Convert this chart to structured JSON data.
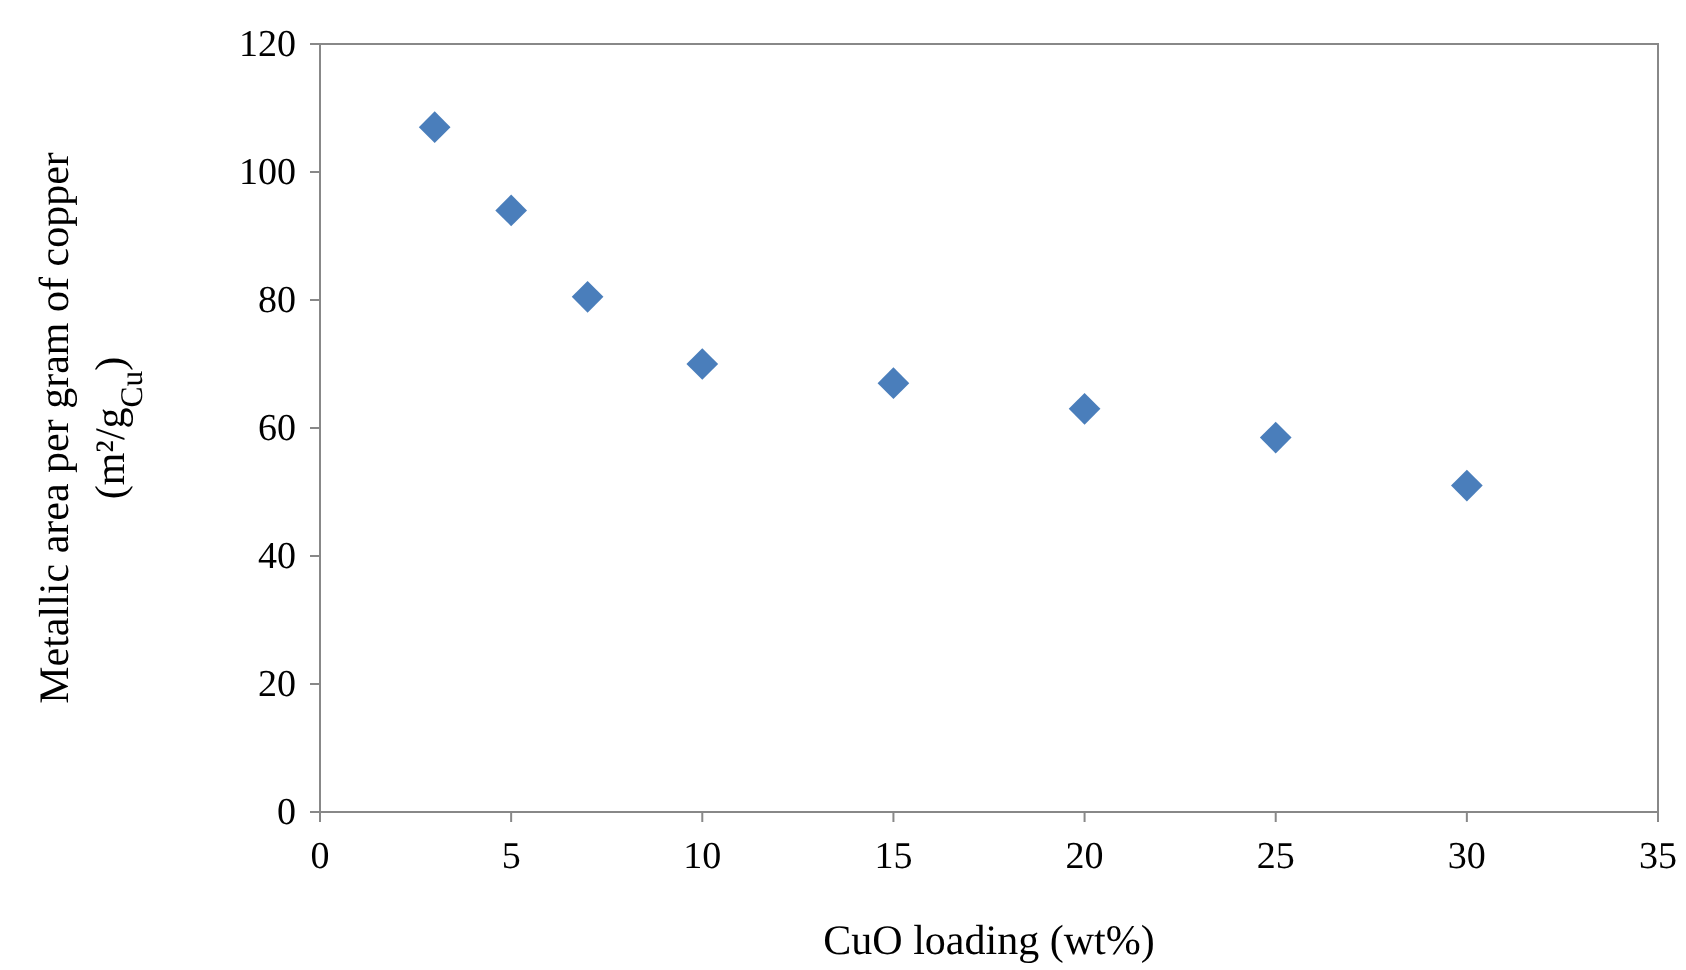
{
  "chart_data": {
    "type": "scatter",
    "xlabel": "CuO loading  (wt%)",
    "ylabel": "Metallic  area per gram  of copper\n(m²/g$_{Cu}$)",
    "x": [
      3,
      5,
      7,
      10,
      15,
      20,
      25,
      30
    ],
    "series": [
      {
        "color": "#4a7ebb",
        "values": [
          107,
          94,
          80.5,
          70,
          67,
          63,
          58.5,
          51
        ]
      }
    ],
    "xlim": [
      0,
      35
    ],
    "xticks": [
      0,
      5,
      10,
      15,
      20,
      25,
      30,
      35
    ],
    "ylim": [
      0,
      120
    ],
    "yticks": [
      0,
      20,
      40,
      60,
      80,
      100,
      120
    ],
    "marker": "diamond",
    "grid": false
  }
}
